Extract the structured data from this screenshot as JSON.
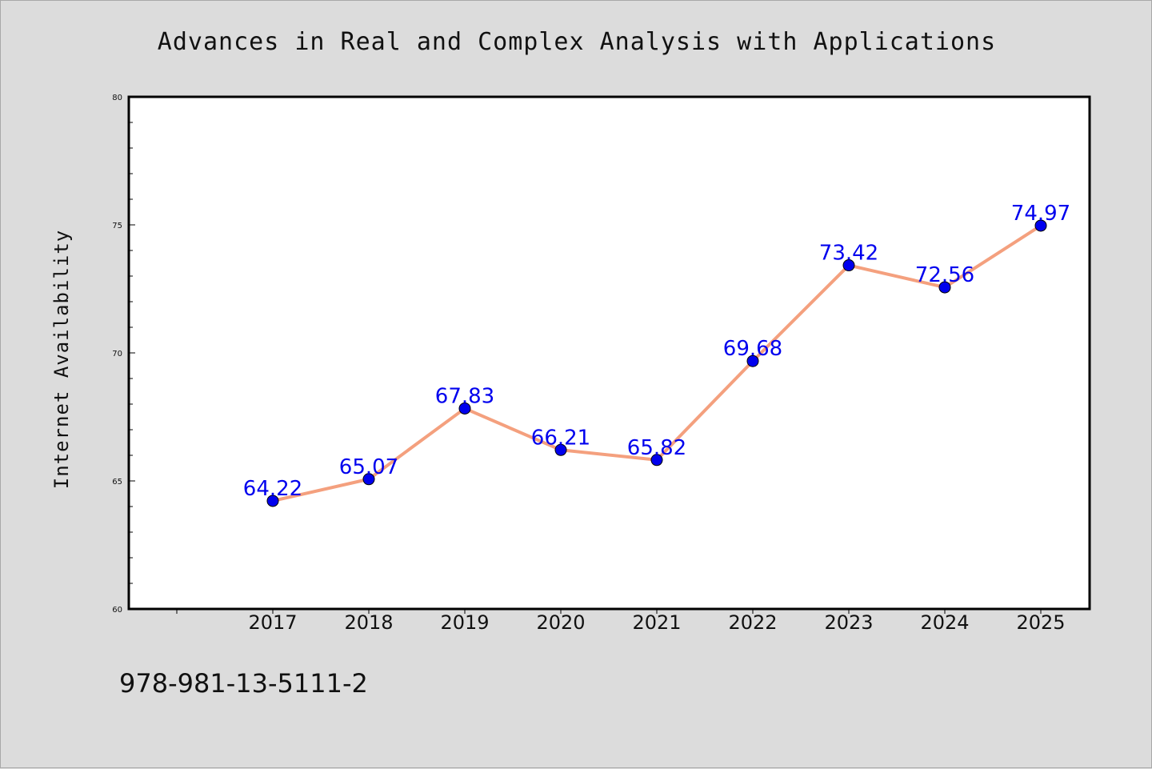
{
  "chart_data": {
    "type": "line",
    "title": "Advances in Real and Complex Analysis with Applications",
    "xlabel": "",
    "ylabel": "Internet Availability",
    "categories": [
      "2017",
      "2018",
      "2019",
      "2020",
      "2021",
      "2022",
      "2023",
      "2024",
      "2025"
    ],
    "values": [
      64.22,
      65.07,
      67.83,
      66.21,
      65.82,
      69.68,
      73.42,
      72.56,
      74.97
    ],
    "data_labels": [
      "64.22",
      "65.07",
      "67.83",
      "66.21",
      "65.82",
      "69.68",
      "73.42",
      "72.56",
      "74.97"
    ],
    "ylim": [
      60,
      80
    ],
    "yticks": [
      "60",
      "65",
      "70",
      "75",
      "80"
    ],
    "grid": false,
    "legend": "none",
    "line_color": "#f4a07e",
    "marker_color": "#0000ee",
    "label_color": "#0000ee"
  },
  "footer": {
    "isbn": "978-981-13-5111-2"
  }
}
